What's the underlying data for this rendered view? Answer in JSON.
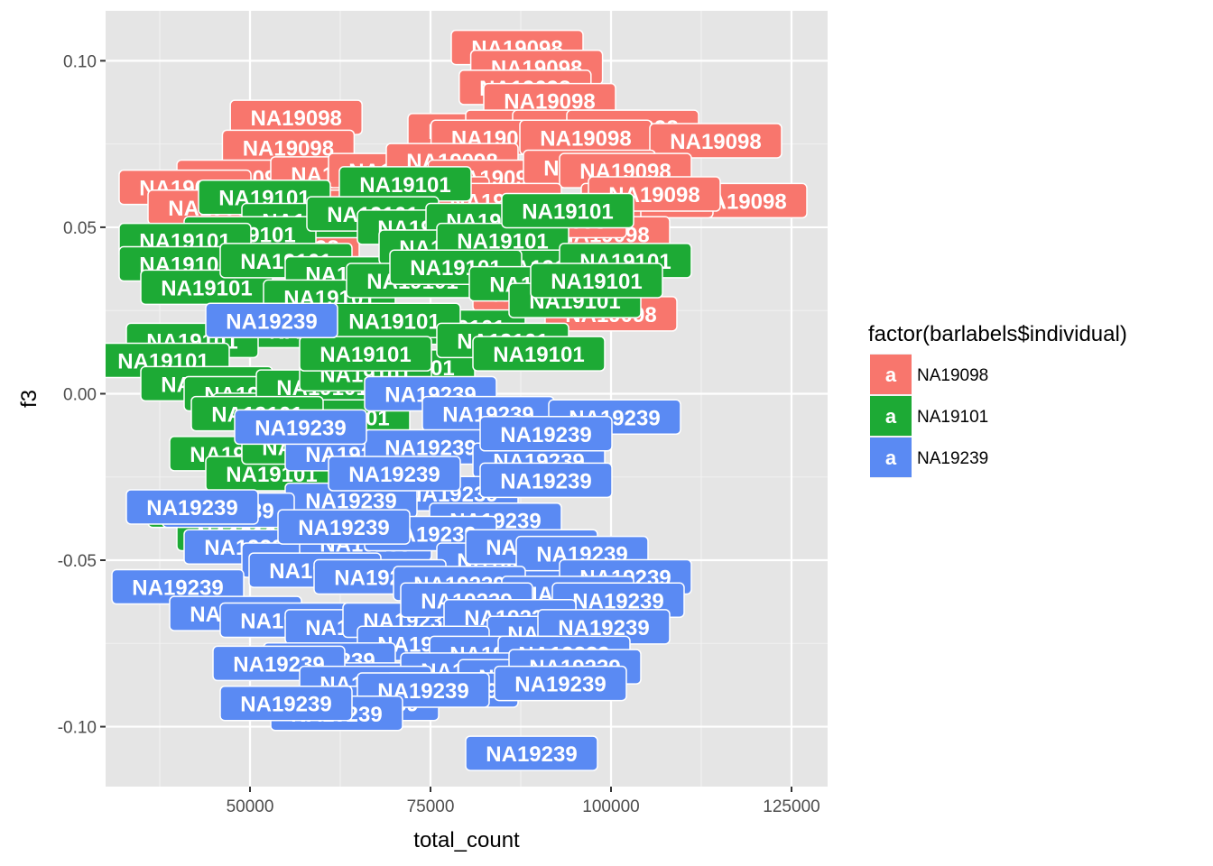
{
  "chart_data": {
    "type": "scatter",
    "xlabel": "total_count",
    "ylabel": "f3",
    "xlim": [
      30000,
      130000
    ],
    "ylim": [
      -0.118,
      0.115
    ],
    "x_ticks": [
      50000,
      75000,
      100000,
      125000
    ],
    "y_ticks": [
      -0.1,
      -0.05,
      0.0,
      0.05,
      0.1
    ],
    "x_tick_labels": [
      "50000",
      "75000",
      "100000",
      "125000"
    ],
    "y_tick_labels": [
      "-0.10",
      "-0.05",
      "0.00",
      "0.05",
      "0.10"
    ],
    "grid": true,
    "legend": {
      "title": "factor(barlabels$individual)",
      "placement": "right",
      "key_glyph": "a",
      "entries": [
        "NA19098",
        "NA19101",
        "NA19239"
      ]
    },
    "colors": {
      "NA19098": "#F8766D",
      "NA19101": "#1DAA35",
      "NA19239": "#5A8AF3",
      "panel": "#E5E5E5",
      "grid_major": "#FFFFFF",
      "grid_minor": "#F2F2F2"
    },
    "series": [
      {
        "name": "NA19098",
        "points": [
          [
            87000,
            0.104
          ],
          [
            89700,
            0.098
          ],
          [
            88100,
            0.092
          ],
          [
            91500,
            0.088
          ],
          [
            81000,
            0.079
          ],
          [
            89000,
            0.08
          ],
          [
            95500,
            0.08
          ],
          [
            103000,
            0.08
          ],
          [
            84200,
            0.077
          ],
          [
            96500,
            0.077
          ],
          [
            114500,
            0.076
          ],
          [
            56400,
            0.083
          ],
          [
            55300,
            0.074
          ],
          [
            49000,
            0.065
          ],
          [
            62000,
            0.066
          ],
          [
            70000,
            0.067
          ],
          [
            78000,
            0.07
          ],
          [
            83800,
            0.065
          ],
          [
            97000,
            0.068
          ],
          [
            102000,
            0.067
          ],
          [
            118000,
            0.058
          ],
          [
            105000,
            0.058
          ],
          [
            95000,
            0.052
          ],
          [
            99000,
            0.048
          ],
          [
            41000,
            0.062
          ],
          [
            45000,
            0.056
          ],
          [
            56000,
            0.044
          ],
          [
            52000,
            0.04
          ],
          [
            65000,
            0.036
          ],
          [
            90000,
            0.03
          ],
          [
            100000,
            0.024
          ],
          [
            93000,
            0.052
          ],
          [
            106000,
            0.06
          ],
          [
            74000,
            0.06
          ],
          [
            60000,
            0.056
          ],
          [
            84000,
            0.058
          ]
        ]
      },
      {
        "name": "NA19101",
        "points": [
          [
            52000,
            0.059
          ],
          [
            58000,
            0.052
          ],
          [
            50000,
            0.048
          ],
          [
            41000,
            0.046
          ],
          [
            41000,
            0.039
          ],
          [
            44000,
            0.032
          ],
          [
            55000,
            0.04
          ],
          [
            64000,
            0.036
          ],
          [
            61000,
            0.029
          ],
          [
            59000,
            0.019
          ],
          [
            71500,
            0.063
          ],
          [
            67000,
            0.054
          ],
          [
            74000,
            0.05
          ],
          [
            83500,
            0.052
          ],
          [
            77000,
            0.044
          ],
          [
            85000,
            0.046
          ],
          [
            94000,
            0.055
          ],
          [
            90800,
            0.038
          ],
          [
            72500,
            0.034
          ],
          [
            78500,
            0.038
          ],
          [
            79000,
            0.02
          ],
          [
            89500,
            0.033
          ],
          [
            102000,
            0.04
          ],
          [
            95000,
            0.028
          ],
          [
            98000,
            0.034
          ],
          [
            70000,
            0.022
          ],
          [
            72000,
            0.008
          ],
          [
            85000,
            0.016
          ],
          [
            90000,
            0.012
          ],
          [
            42000,
            0.016
          ],
          [
            38000,
            0.01
          ],
          [
            44000,
            0.003
          ],
          [
            50000,
            0.0
          ],
          [
            54000,
            -0.005
          ],
          [
            60000,
            0.002
          ],
          [
            63000,
            -0.007
          ],
          [
            66000,
            0.006
          ],
          [
            48000,
            -0.018
          ],
          [
            53000,
            -0.024
          ],
          [
            45000,
            -0.035
          ],
          [
            49000,
            -0.042
          ],
          [
            58000,
            -0.016
          ],
          [
            66000,
            0.012
          ],
          [
            51000,
            -0.006
          ]
        ]
      },
      {
        "name": "NA19239",
        "points": [
          [
            53000,
            0.022
          ],
          [
            75000,
            0.0
          ],
          [
            83000,
            -0.006
          ],
          [
            100500,
            -0.007
          ],
          [
            64000,
            -0.018
          ],
          [
            75000,
            -0.016
          ],
          [
            90000,
            -0.02
          ],
          [
            91000,
            -0.012
          ],
          [
            78000,
            -0.03
          ],
          [
            91000,
            -0.026
          ],
          [
            57000,
            -0.035
          ],
          [
            64000,
            -0.032
          ],
          [
            84000,
            -0.038
          ],
          [
            47000,
            -0.035
          ],
          [
            42000,
            -0.034
          ],
          [
            50000,
            -0.046
          ],
          [
            58000,
            -0.05
          ],
          [
            66000,
            -0.045
          ],
          [
            75000,
            -0.042
          ],
          [
            85000,
            -0.05
          ],
          [
            89000,
            -0.046
          ],
          [
            96000,
            -0.048
          ],
          [
            102000,
            -0.055
          ],
          [
            59000,
            -0.053
          ],
          [
            68000,
            -0.055
          ],
          [
            79000,
            -0.057
          ],
          [
            94000,
            -0.06
          ],
          [
            101000,
            -0.062
          ],
          [
            40000,
            -0.058
          ],
          [
            48000,
            -0.066
          ],
          [
            55000,
            -0.068
          ],
          [
            64000,
            -0.07
          ],
          [
            72000,
            -0.068
          ],
          [
            80000,
            -0.062
          ],
          [
            86000,
            -0.067
          ],
          [
            92000,
            -0.072
          ],
          [
            99000,
            -0.07
          ],
          [
            74000,
            -0.075
          ],
          [
            84000,
            -0.078
          ],
          [
            93500,
            -0.078
          ],
          [
            61000,
            -0.08
          ],
          [
            69000,
            -0.086
          ],
          [
            80000,
            -0.083
          ],
          [
            88000,
            -0.085
          ],
          [
            95000,
            -0.082
          ],
          [
            54000,
            -0.081
          ],
          [
            66000,
            -0.087
          ],
          [
            78000,
            -0.089
          ],
          [
            93000,
            -0.087
          ],
          [
            67000,
            -0.093
          ],
          [
            74000,
            -0.089
          ],
          [
            62000,
            -0.096
          ],
          [
            55000,
            -0.093
          ],
          [
            57000,
            -0.01
          ],
          [
            63000,
            -0.04
          ],
          [
            70000,
            -0.024
          ],
          [
            89000,
            -0.108
          ]
        ]
      }
    ]
  }
}
